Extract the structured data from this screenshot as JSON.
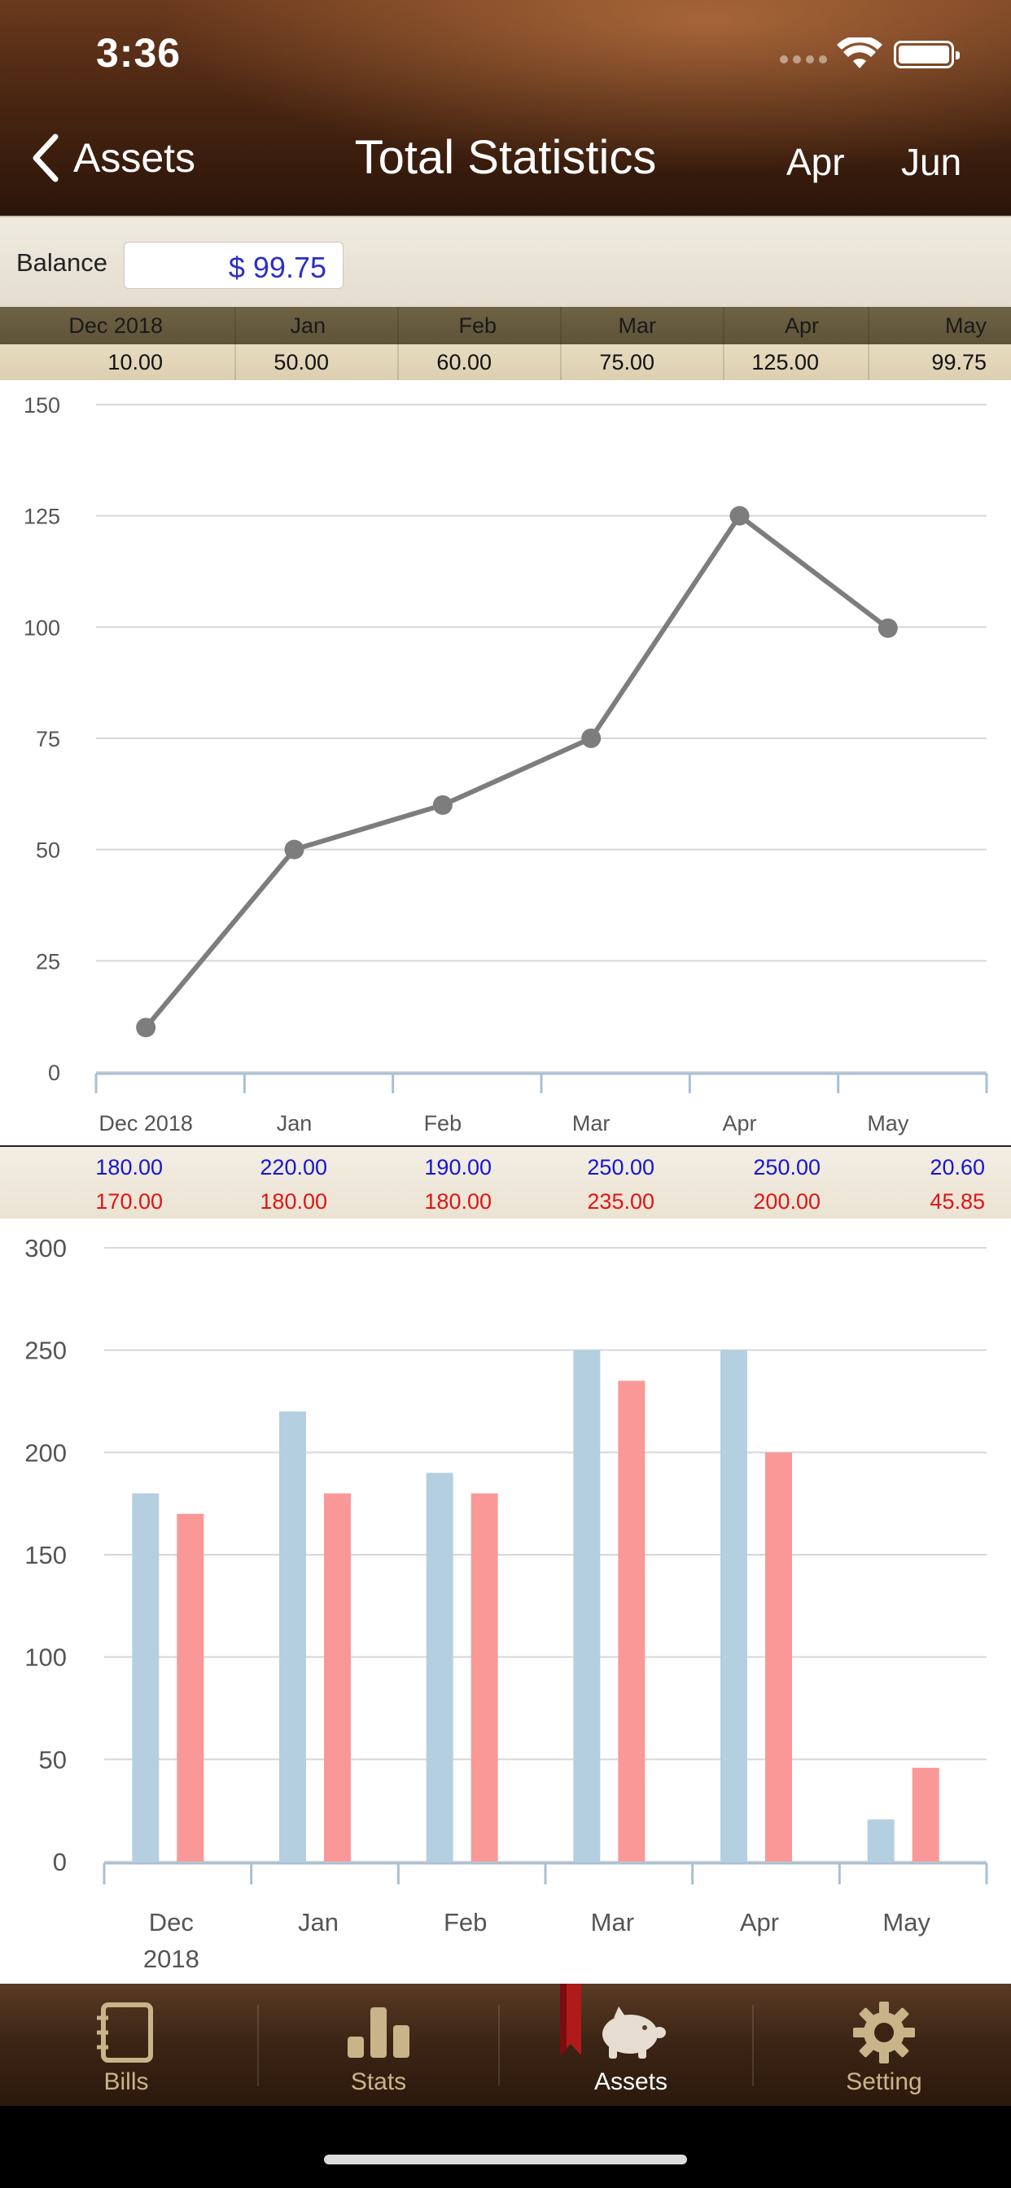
{
  "status_bar": {
    "time": "3:36"
  },
  "nav": {
    "back_label": "Assets",
    "title": "Total Statistics",
    "prev_label": "Apr",
    "next_label": "Jun"
  },
  "balance": {
    "label": "Balance",
    "value": "$ 99.75"
  },
  "month_strip": {
    "months": [
      "Dec 2018",
      "Jan",
      "Feb",
      "Mar",
      "Apr",
      "May"
    ],
    "values": [
      "10.00",
      "50.00",
      "60.00",
      "75.00",
      "125.00",
      "99.75"
    ]
  },
  "ie_strip": {
    "income": [
      "180.00",
      "220.00",
      "190.00",
      "250.00",
      "250.00",
      "20.60"
    ],
    "expense": [
      "170.00",
      "180.00",
      "180.00",
      "235.00",
      "200.00",
      "45.85"
    ]
  },
  "colors": {
    "line": "#7d7d7d",
    "income_bar": "#b4cfdf",
    "expense_bar": "#fa9898",
    "income_text": "#1515d6",
    "expense_text": "#e01515"
  },
  "chart_data": [
    {
      "type": "line",
      "categories": [
        "Dec 2018",
        "Jan",
        "Feb",
        "Mar",
        "Apr",
        "May"
      ],
      "values": [
        10,
        50,
        60,
        75,
        125,
        99.75
      ],
      "ylim": [
        0,
        150
      ],
      "yticks": [
        0,
        25,
        50,
        75,
        100,
        125,
        150
      ],
      "grid": true
    },
    {
      "type": "bar",
      "categories": [
        "Dec\n2018",
        "Jan",
        "Feb",
        "Mar",
        "Apr",
        "May"
      ],
      "series": [
        {
          "values": [
            180,
            220,
            190,
            250,
            250,
            20.6
          ]
        },
        {
          "values": [
            170,
            180,
            180,
            235,
            200,
            45.85
          ]
        }
      ],
      "ylim": [
        0,
        300
      ],
      "yticks": [
        0,
        50,
        100,
        150,
        200,
        250,
        300
      ],
      "grid": true
    }
  ],
  "tab_bar": {
    "items": [
      {
        "label": "Bills",
        "icon": "notebook-icon"
      },
      {
        "label": "Stats",
        "icon": "bar-chart-icon"
      },
      {
        "label": "Assets",
        "icon": "piggy-bank-icon"
      },
      {
        "label": "Setting",
        "icon": "gear-icon"
      }
    ],
    "active": "Assets"
  }
}
